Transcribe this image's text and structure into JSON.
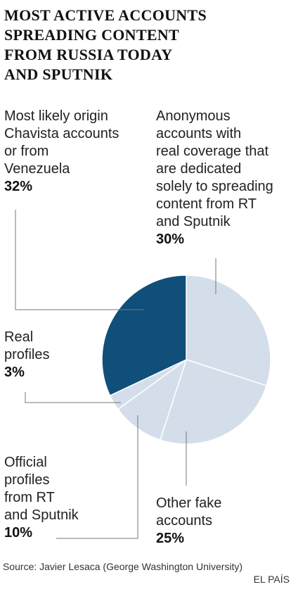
{
  "header": {
    "title_lines": [
      "MOST ACTIVE ACCOUNTS",
      "SPREADING CONTENT",
      "FROM RUSSIA TODAY",
      "AND SPUTNIK"
    ]
  },
  "chart_data": {
    "type": "pie",
    "title": "MOST ACTIVE ACCOUNTS SPREADING CONTENT FROM RUSSIA TODAY AND SPUTNIK",
    "slices": [
      {
        "label_lines": [
          "Anonymous",
          "accounts with",
          "real coverage that",
          "are dedicated",
          "solely to spreading",
          "content from RT",
          "and Sputnik"
        ],
        "percent_text": "30%",
        "value": 30,
        "color": "#d3deea"
      },
      {
        "label_lines": [
          "Other fake",
          "accounts"
        ],
        "percent_text": "25%",
        "value": 25,
        "color": "#d3deea"
      },
      {
        "label_lines": [
          "Official",
          "profiles",
          "from RT",
          "and Sputnik"
        ],
        "percent_text": "10%",
        "value": 10,
        "color": "#d3deea"
      },
      {
        "label_lines": [
          "Real",
          "profiles"
        ],
        "percent_text": "3%",
        "value": 3,
        "color": "#d3deea"
      },
      {
        "label_lines": [
          "Most likely origin",
          "Chavista accounts",
          "or from",
          "Venezuela"
        ],
        "percent_text": "32%",
        "value": 32,
        "color": "#0f4f7a"
      }
    ],
    "slice_border_color": "#ffffff",
    "leader_line_color": "#777777"
  },
  "footer": {
    "source": "Source: Javier Lesaca (George Washington University)",
    "credit": "EL PAÍS"
  }
}
